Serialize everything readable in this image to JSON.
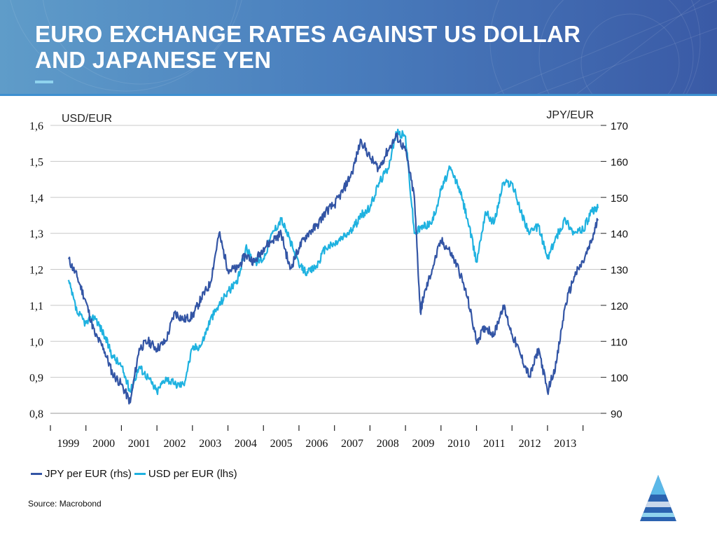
{
  "slide": {
    "title_line1": "EURO EXCHANGE RATES AGAINST US DOLLAR",
    "title_line2": "AND JAPANESE YEN",
    "source": "Source: Macrobond"
  },
  "colors": {
    "jpy": "#3355a5",
    "usd": "#1fb2e0",
    "header_left": "#5f9cc9",
    "header_right": "#3a5aa6"
  },
  "chart_data": {
    "type": "line",
    "title": "EURO EXCHANGE RATES AGAINST US DOLLAR AND JAPANESE YEN",
    "ylabel_left": "USD/EUR",
    "ylabel_right": "JPY/EUR",
    "ylim_left": [
      0.8,
      1.6
    ],
    "ylim_right": [
      90,
      170
    ],
    "left_ticks": [
      "0,8",
      "0,9",
      "1,0",
      "1,1",
      "1,2",
      "1,3",
      "1,4",
      "1,5",
      "1,6"
    ],
    "right_ticks": [
      "90",
      "100",
      "110",
      "120",
      "130",
      "140",
      "150",
      "160",
      "170"
    ],
    "x_labels": [
      "1999",
      "2000",
      "2001",
      "2002",
      "2003",
      "2004",
      "2005",
      "2006",
      "2007",
      "2008",
      "2009",
      "2010",
      "2011",
      "2012",
      "2013"
    ],
    "grid": true,
    "legend_position": "bottom-left",
    "series": [
      {
        "name": "JPY per EUR (rhs)",
        "axis": "right",
        "color": "#3355a5",
        "points": [
          [
            1999.0,
            133
          ],
          [
            1999.25,
            128
          ],
          [
            1999.5,
            121
          ],
          [
            1999.75,
            112
          ],
          [
            2000.0,
            108
          ],
          [
            2000.25,
            101
          ],
          [
            2000.5,
            98
          ],
          [
            2000.75,
            93
          ],
          [
            2001.0,
            108
          ],
          [
            2001.25,
            110
          ],
          [
            2001.5,
            108
          ],
          [
            2001.75,
            110
          ],
          [
            2002.0,
            118
          ],
          [
            2002.25,
            116
          ],
          [
            2002.5,
            117
          ],
          [
            2002.75,
            122
          ],
          [
            2003.0,
            126
          ],
          [
            2003.25,
            140
          ],
          [
            2003.5,
            130
          ],
          [
            2003.75,
            130
          ],
          [
            2004.0,
            134
          ],
          [
            2004.25,
            132
          ],
          [
            2004.5,
            136
          ],
          [
            2004.75,
            138
          ],
          [
            2005.0,
            140
          ],
          [
            2005.25,
            130
          ],
          [
            2005.5,
            136
          ],
          [
            2005.75,
            140
          ],
          [
            2006.0,
            142
          ],
          [
            2006.25,
            146
          ],
          [
            2006.5,
            148
          ],
          [
            2006.75,
            152
          ],
          [
            2007.0,
            157
          ],
          [
            2007.25,
            166
          ],
          [
            2007.5,
            161
          ],
          [
            2007.75,
            158
          ],
          [
            2008.0,
            163
          ],
          [
            2008.25,
            167
          ],
          [
            2008.5,
            163
          ],
          [
            2008.75,
            150
          ],
          [
            2008.92,
            118
          ],
          [
            2009.0,
            122
          ],
          [
            2009.25,
            130
          ],
          [
            2009.5,
            138
          ],
          [
            2009.75,
            135
          ],
          [
            2010.0,
            130
          ],
          [
            2010.25,
            122
          ],
          [
            2010.5,
            110
          ],
          [
            2010.75,
            114
          ],
          [
            2011.0,
            112
          ],
          [
            2011.25,
            120
          ],
          [
            2011.5,
            112
          ],
          [
            2011.75,
            106
          ],
          [
            2012.0,
            100
          ],
          [
            2012.25,
            108
          ],
          [
            2012.5,
            96
          ],
          [
            2012.75,
            104
          ],
          [
            2013.0,
            120
          ],
          [
            2013.25,
            128
          ],
          [
            2013.5,
            132
          ],
          [
            2013.75,
            138
          ],
          [
            2013.92,
            144
          ]
        ]
      },
      {
        "name": "USD per EUR (lhs)",
        "axis": "left",
        "color": "#1fb2e0",
        "points": [
          [
            1999.0,
            1.17
          ],
          [
            1999.25,
            1.08
          ],
          [
            1999.5,
            1.05
          ],
          [
            1999.75,
            1.07
          ],
          [
            2000.0,
            1.02
          ],
          [
            2000.25,
            0.96
          ],
          [
            2000.5,
            0.93
          ],
          [
            2000.75,
            0.86
          ],
          [
            2001.0,
            0.93
          ],
          [
            2001.25,
            0.9
          ],
          [
            2001.5,
            0.86
          ],
          [
            2001.75,
            0.9
          ],
          [
            2002.0,
            0.88
          ],
          [
            2002.25,
            0.88
          ],
          [
            2002.5,
            0.98
          ],
          [
            2002.75,
            0.99
          ],
          [
            2003.0,
            1.06
          ],
          [
            2003.25,
            1.1
          ],
          [
            2003.5,
            1.14
          ],
          [
            2003.75,
            1.16
          ],
          [
            2004.0,
            1.26
          ],
          [
            2004.25,
            1.22
          ],
          [
            2004.5,
            1.23
          ],
          [
            2004.75,
            1.3
          ],
          [
            2005.0,
            1.34
          ],
          [
            2005.25,
            1.28
          ],
          [
            2005.5,
            1.21
          ],
          [
            2005.75,
            1.19
          ],
          [
            2006.0,
            1.21
          ],
          [
            2006.25,
            1.26
          ],
          [
            2006.5,
            1.27
          ],
          [
            2006.75,
            1.29
          ],
          [
            2007.0,
            1.31
          ],
          [
            2007.25,
            1.35
          ],
          [
            2007.5,
            1.37
          ],
          [
            2007.75,
            1.44
          ],
          [
            2008.0,
            1.48
          ],
          [
            2008.25,
            1.58
          ],
          [
            2008.5,
            1.57
          ],
          [
            2008.75,
            1.3
          ],
          [
            2009.0,
            1.32
          ],
          [
            2009.25,
            1.33
          ],
          [
            2009.5,
            1.42
          ],
          [
            2009.75,
            1.48
          ],
          [
            2010.0,
            1.43
          ],
          [
            2010.25,
            1.34
          ],
          [
            2010.5,
            1.22
          ],
          [
            2010.75,
            1.36
          ],
          [
            2011.0,
            1.33
          ],
          [
            2011.25,
            1.44
          ],
          [
            2011.5,
            1.44
          ],
          [
            2011.75,
            1.36
          ],
          [
            2012.0,
            1.3
          ],
          [
            2012.25,
            1.32
          ],
          [
            2012.5,
            1.23
          ],
          [
            2012.75,
            1.29
          ],
          [
            2013.0,
            1.34
          ],
          [
            2013.25,
            1.3
          ],
          [
            2013.5,
            1.31
          ],
          [
            2013.75,
            1.36
          ],
          [
            2013.92,
            1.37
          ]
        ]
      }
    ]
  }
}
